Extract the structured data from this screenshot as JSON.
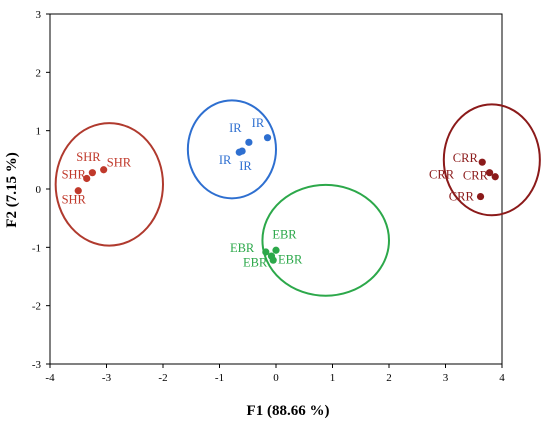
{
  "chart_data": {
    "type": "scatter",
    "xlabel": "F1 (88.66 %)",
    "ylabel": "F2 (7.15 %)",
    "xlim": [
      -4,
      4
    ],
    "ylim": [
      -3,
      3
    ],
    "xticks": [
      "-4",
      "-3",
      "-2",
      "-1",
      "0",
      "1",
      "2",
      "3",
      "4"
    ],
    "yticks": [
      "-3",
      "-2",
      "-1",
      "0",
      "1",
      "2",
      "3"
    ],
    "grid": false,
    "legend": "none",
    "groups": [
      {
        "label": "SHR",
        "color": "#c0392b",
        "ellipse_color": "#b03a2e",
        "points": [
          [
            -3.5,
            -0.03
          ],
          [
            -3.35,
            0.18
          ],
          [
            -3.25,
            0.28
          ],
          [
            -3.05,
            0.33
          ]
        ],
        "labels": [
          {
            "text": "SHR",
            "x": -3.32,
            "y": 0.48
          },
          {
            "text": "SHR",
            "x": -2.78,
            "y": 0.39
          },
          {
            "text": "SHR",
            "x": -3.58,
            "y": 0.18
          },
          {
            "text": "SHR",
            "x": -3.58,
            "y": -0.25
          }
        ],
        "ellipse": {
          "cx": -2.95,
          "cy": 0.08,
          "rx": 0.95,
          "ry": 1.05
        }
      },
      {
        "label": "IR",
        "color": "#2e6fd0",
        "ellipse_color": "#2e6fd0",
        "points": [
          [
            -0.65,
            0.63
          ],
          [
            -0.6,
            0.65
          ],
          [
            -0.48,
            0.8
          ],
          [
            -0.15,
            0.88
          ]
        ],
        "labels": [
          {
            "text": "IR",
            "x": -0.72,
            "y": 0.98
          },
          {
            "text": "IR",
            "x": -0.32,
            "y": 1.06
          },
          {
            "text": "IR",
            "x": -0.9,
            "y": 0.43
          },
          {
            "text": "IR",
            "x": -0.54,
            "y": 0.33
          }
        ],
        "ellipse": {
          "cx": -0.78,
          "cy": 0.68,
          "rx": 0.78,
          "ry": 0.84
        }
      },
      {
        "label": "EBR",
        "color": "#2ca84a",
        "ellipse_color": "#2ca84a",
        "points": [
          [
            -0.18,
            -1.08
          ],
          [
            0.0,
            -1.05
          ],
          [
            -0.08,
            -1.15
          ],
          [
            -0.05,
            -1.22
          ]
        ],
        "labels": [
          {
            "text": "EBR",
            "x": 0.15,
            "y": -0.85
          },
          {
            "text": "EBR",
            "x": -0.6,
            "y": -1.08
          },
          {
            "text": "EBR",
            "x": 0.25,
            "y": -1.28
          },
          {
            "text": "EBR",
            "x": -0.37,
            "y": -1.33
          }
        ],
        "ellipse": {
          "cx": 0.88,
          "cy": -0.88,
          "rx": 1.12,
          "ry": 0.95
        }
      },
      {
        "label": "CRR",
        "color": "#8b1a1a",
        "ellipse_color": "#8b1a1a",
        "points": [
          [
            3.65,
            0.46
          ],
          [
            3.78,
            0.28
          ],
          [
            3.88,
            0.21
          ],
          [
            3.62,
            -0.13
          ]
        ],
        "labels": [
          {
            "text": "CRR",
            "x": 3.35,
            "y": 0.46
          },
          {
            "text": "CRR",
            "x": 2.93,
            "y": 0.18
          },
          {
            "text": "CRR",
            "x": 3.53,
            "y": 0.16
          },
          {
            "text": "CRR",
            "x": 3.28,
            "y": -0.2
          }
        ],
        "ellipse": {
          "cx": 3.82,
          "cy": 0.5,
          "rx": 0.85,
          "ry": 0.95
        }
      }
    ]
  }
}
